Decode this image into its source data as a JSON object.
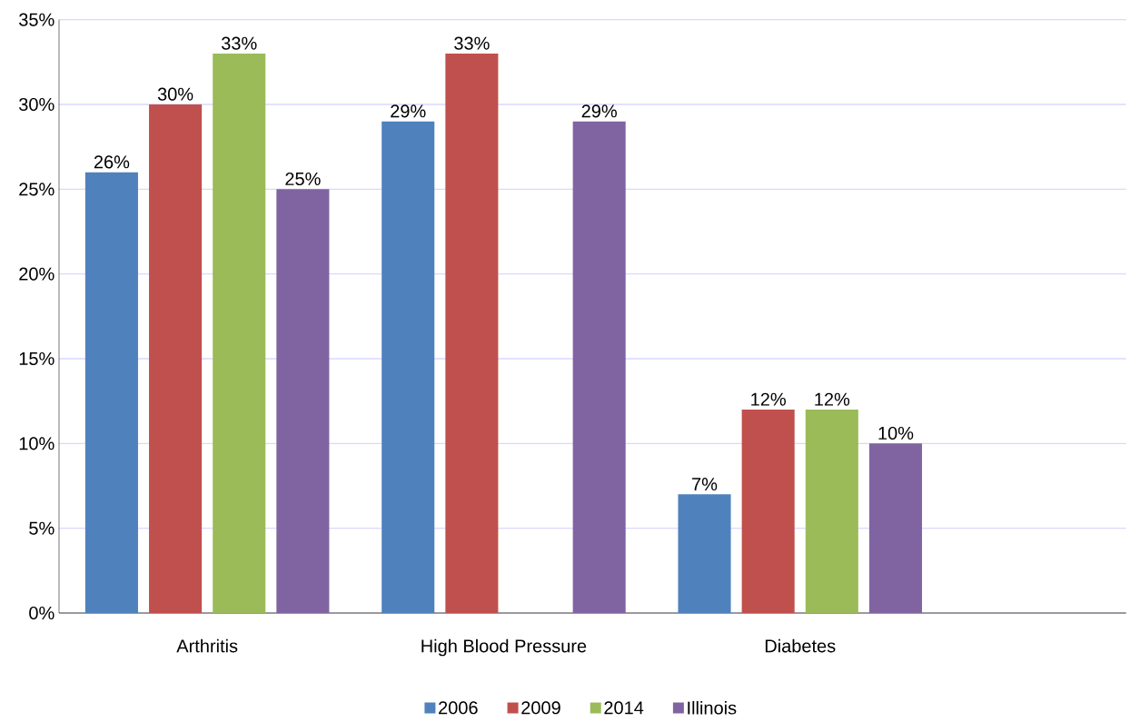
{
  "chart_data": {
    "type": "bar",
    "categories": [
      "Arthritis",
      "High Blood Pressure",
      "Diabetes"
    ],
    "series": [
      {
        "name": "2006",
        "color": "#4f81bd",
        "values": [
          26,
          29,
          7
        ],
        "value_labels": [
          "26%",
          "29%",
          "7%"
        ]
      },
      {
        "name": "2009",
        "color": "#c0504d",
        "values": [
          30,
          33,
          12
        ],
        "value_labels": [
          "30%",
          "33%",
          "12%"
        ]
      },
      {
        "name": "2014",
        "color": "#9bbb59",
        "values": [
          33,
          null,
          12
        ],
        "value_labels": [
          "33%",
          null,
          "12%"
        ]
      },
      {
        "name": "Illinois",
        "color": "#8064a2",
        "values": [
          25,
          29,
          10
        ],
        "value_labels": [
          "25%",
          "29%",
          "10%"
        ]
      }
    ],
    "ylim": [
      0,
      35
    ],
    "yticks": [
      {
        "value": 0,
        "label": "0%"
      },
      {
        "value": 5,
        "label": "5%"
      },
      {
        "value": 10,
        "label": "10%"
      },
      {
        "value": 15,
        "label": "15%"
      },
      {
        "value": 20,
        "label": "20%"
      },
      {
        "value": 25,
        "label": "25%"
      },
      {
        "value": 30,
        "label": "30%"
      },
      {
        "value": 35,
        "label": "35%"
      }
    ],
    "grid": "y",
    "legend": "bottom"
  }
}
